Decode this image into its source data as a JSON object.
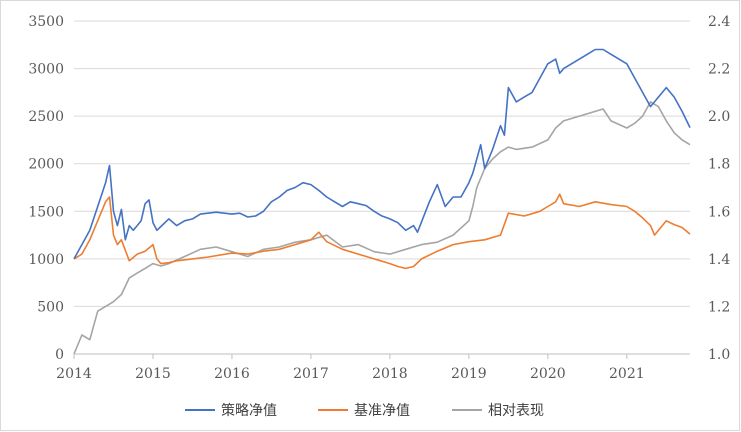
{
  "chart_data": {
    "type": "line",
    "title": "",
    "xlabel": "",
    "ylabel": "",
    "y2label": "",
    "x_ticks": [
      "2014",
      "2015",
      "2016",
      "2017",
      "2018",
      "2019",
      "2020",
      "2021"
    ],
    "y_ticks": [
      "0",
      "500",
      "1000",
      "1500",
      "2000",
      "2500",
      "3000",
      "3500"
    ],
    "y2_ticks": [
      "1.0",
      "1.2",
      "1.4",
      "1.6",
      "1.8",
      "2.0",
      "2.2",
      "2.4"
    ],
    "xlim": [
      2014.0,
      2021.8
    ],
    "ylim": [
      0,
      3500
    ],
    "y2lim": [
      1.0,
      2.4
    ],
    "grid": true,
    "legend_position": "bottom",
    "series": [
      {
        "name": "策略净值",
        "axis": "left",
        "color": "#4472c4",
        "x": [
          2014.0,
          2014.1,
          2014.2,
          2014.3,
          2014.4,
          2014.45,
          2014.5,
          2014.55,
          2014.6,
          2014.65,
          2014.7,
          2014.75,
          2014.8,
          2014.85,
          2014.9,
          2014.95,
          2015.0,
          2015.05,
          2015.1,
          2015.2,
          2015.3,
          2015.4,
          2015.5,
          2015.6,
          2015.8,
          2016.0,
          2016.1,
          2016.2,
          2016.3,
          2016.4,
          2016.5,
          2016.6,
          2016.7,
          2016.8,
          2016.9,
          2017.0,
          2017.1,
          2017.2,
          2017.3,
          2017.4,
          2017.5,
          2017.6,
          2017.7,
          2017.8,
          2017.9,
          2018.0,
          2018.1,
          2018.2,
          2018.3,
          2018.35,
          2018.5,
          2018.6,
          2018.7,
          2018.8,
          2018.9,
          2019.0,
          2019.05,
          2019.1,
          2019.15,
          2019.2,
          2019.3,
          2019.4,
          2019.45,
          2019.5,
          2019.6,
          2019.7,
          2019.8,
          2019.9,
          2020.0,
          2020.1,
          2020.15,
          2020.2,
          2020.3,
          2020.4,
          2020.5,
          2020.6,
          2020.7,
          2020.8,
          2020.9,
          2021.0,
          2021.1,
          2021.2,
          2021.3,
          2021.4,
          2021.5,
          2021.6,
          2021.7,
          2021.8
        ],
        "y": [
          1000,
          1150,
          1300,
          1550,
          1800,
          1980,
          1500,
          1350,
          1520,
          1200,
          1350,
          1300,
          1350,
          1400,
          1580,
          1620,
          1380,
          1300,
          1340,
          1420,
          1350,
          1400,
          1420,
          1470,
          1490,
          1470,
          1480,
          1440,
          1450,
          1500,
          1600,
          1650,
          1720,
          1750,
          1800,
          1780,
          1720,
          1650,
          1600,
          1550,
          1600,
          1580,
          1560,
          1500,
          1450,
          1420,
          1380,
          1300,
          1350,
          1280,
          1600,
          1780,
          1550,
          1650,
          1650,
          1800,
          1900,
          2050,
          2200,
          1950,
          2150,
          2400,
          2300,
          2800,
          2650,
          2700,
          2750,
          2900,
          3050,
          3100,
          2950,
          3000,
          3050,
          3100,
          3150,
          3200,
          3200,
          3150,
          3100,
          3050,
          2900,
          2750,
          2600,
          2700,
          2800,
          2700,
          2550,
          2380
        ]
      },
      {
        "name": "基准净值",
        "axis": "left",
        "color": "#ed7d31",
        "x": [
          2014.0,
          2014.1,
          2014.2,
          2014.3,
          2014.4,
          2014.45,
          2014.5,
          2014.55,
          2014.6,
          2014.7,
          2014.8,
          2014.9,
          2015.0,
          2015.05,
          2015.1,
          2015.2,
          2015.3,
          2015.5,
          2015.7,
          2016.0,
          2016.2,
          2016.4,
          2016.6,
          2016.8,
          2017.0,
          2017.1,
          2017.2,
          2017.4,
          2017.6,
          2017.8,
          2018.0,
          2018.1,
          2018.2,
          2018.3,
          2018.4,
          2018.6,
          2018.8,
          2019.0,
          2019.2,
          2019.4,
          2019.5,
          2019.7,
          2019.9,
          2020.0,
          2020.1,
          2020.15,
          2020.2,
          2020.4,
          2020.6,
          2020.8,
          2021.0,
          2021.1,
          2021.2,
          2021.3,
          2021.35,
          2021.5,
          2021.6,
          2021.7,
          2021.8
        ],
        "y": [
          1000,
          1050,
          1200,
          1400,
          1600,
          1650,
          1250,
          1150,
          1200,
          980,
          1050,
          1080,
          1150,
          1000,
          950,
          960,
          980,
          1000,
          1020,
          1060,
          1050,
          1080,
          1100,
          1150,
          1200,
          1280,
          1180,
          1100,
          1050,
          1000,
          950,
          920,
          900,
          920,
          1000,
          1080,
          1150,
          1180,
          1200,
          1250,
          1480,
          1450,
          1500,
          1550,
          1600,
          1680,
          1580,
          1550,
          1600,
          1570,
          1550,
          1500,
          1430,
          1350,
          1250,
          1400,
          1360,
          1330,
          1260
        ]
      },
      {
        "name": "相对表现",
        "axis": "right",
        "color": "#a5a5a5",
        "x": [
          2014.0,
          2014.1,
          2014.2,
          2014.3,
          2014.4,
          2014.5,
          2014.6,
          2014.7,
          2014.8,
          2014.9,
          2015.0,
          2015.1,
          2015.2,
          2015.4,
          2015.6,
          2015.8,
          2016.0,
          2016.2,
          2016.4,
          2016.6,
          2016.8,
          2017.0,
          2017.2,
          2017.4,
          2017.6,
          2017.8,
          2018.0,
          2018.2,
          2018.4,
          2018.6,
          2018.8,
          2019.0,
          2019.05,
          2019.1,
          2019.2,
          2019.3,
          2019.4,
          2019.5,
          2019.6,
          2019.8,
          2020.0,
          2020.1,
          2020.2,
          2020.4,
          2020.6,
          2020.7,
          2020.8,
          2021.0,
          2021.1,
          2021.2,
          2021.3,
          2021.4,
          2021.5,
          2021.6,
          2021.7,
          2021.8
        ],
        "y": [
          1.0,
          1.08,
          1.06,
          1.18,
          1.2,
          1.22,
          1.25,
          1.32,
          1.34,
          1.36,
          1.38,
          1.37,
          1.38,
          1.41,
          1.44,
          1.45,
          1.43,
          1.41,
          1.44,
          1.45,
          1.47,
          1.48,
          1.5,
          1.45,
          1.46,
          1.43,
          1.42,
          1.44,
          1.46,
          1.47,
          1.5,
          1.56,
          1.62,
          1.7,
          1.78,
          1.82,
          1.85,
          1.87,
          1.86,
          1.87,
          1.9,
          1.95,
          1.98,
          2.0,
          2.02,
          2.03,
          1.98,
          1.95,
          1.97,
          2.0,
          2.06,
          2.04,
          1.98,
          1.93,
          1.9,
          1.88
        ]
      }
    ]
  }
}
